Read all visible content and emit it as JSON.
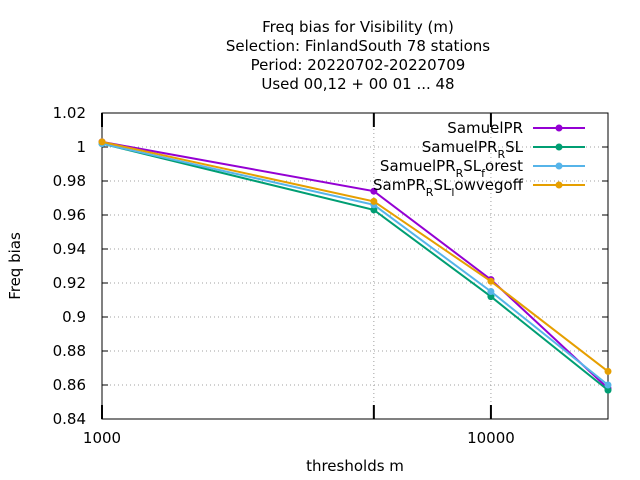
{
  "chart_data": {
    "type": "line",
    "title_lines": [
      "Freq bias  for Visibility (m)",
      "Selection: FinlandSouth      78 stations",
      "Period: 20220702-20220709",
      "Used  00,12  + 00 01 ... 48"
    ],
    "xlabel": "thresholds m",
    "ylabel": "Freq bias",
    "x_scale": "log",
    "xlim": [
      1000,
      20000
    ],
    "ylim": [
      0.84,
      1.02
    ],
    "x_ticks": [
      {
        "value": 1000,
        "label": "1000"
      },
      {
        "value": 10000,
        "label": "10000"
      }
    ],
    "y_ticks": [
      {
        "value": 0.84,
        "label": "0.84"
      },
      {
        "value": 0.86,
        "label": "0.86"
      },
      {
        "value": 0.88,
        "label": "0.88"
      },
      {
        "value": 0.9,
        "label": "0.9"
      },
      {
        "value": 0.92,
        "label": "0.92"
      },
      {
        "value": 0.94,
        "label": "0.94"
      },
      {
        "value": 0.96,
        "label": "0.96"
      },
      {
        "value": 0.98,
        "label": "0.98"
      },
      {
        "value": 1,
        "label": "1"
      },
      {
        "value": 1.02,
        "label": "1.02"
      }
    ],
    "grid": true,
    "legend_position": "top-right",
    "x": [
      1000,
      5000,
      10000,
      20000
    ],
    "series": [
      {
        "name": "SamuelPR",
        "name_base": "SamuelPR",
        "name_sub": "",
        "name_tail": "",
        "color": "#9400d3",
        "values": [
          1.003,
          0.974,
          0.922,
          0.858
        ]
      },
      {
        "name": "SamuelPR_RSL",
        "name_base": "SamuelPR",
        "name_sub": "R",
        "name_tail": "SL",
        "color": "#009e73",
        "values": [
          1.002,
          0.963,
          0.912,
          0.857
        ]
      },
      {
        "name": "SamuelPR_RSL_forest",
        "name_base": "SamuelPR",
        "name_sub": "R",
        "name_tail": "SL",
        "name_sub2": "f",
        "name_tail2": "orest",
        "color": "#56b4e9",
        "values": [
          1.002,
          0.966,
          0.915,
          0.86
        ]
      },
      {
        "name": "SamPR_RSL_lowvegoff",
        "name_base": "SamPR",
        "name_sub": "R",
        "name_tail": "SL",
        "name_sub2": "l",
        "name_tail2": "owvegoff",
        "color": "#e69f00",
        "values": [
          1.003,
          0.968,
          0.921,
          0.868
        ]
      }
    ]
  }
}
